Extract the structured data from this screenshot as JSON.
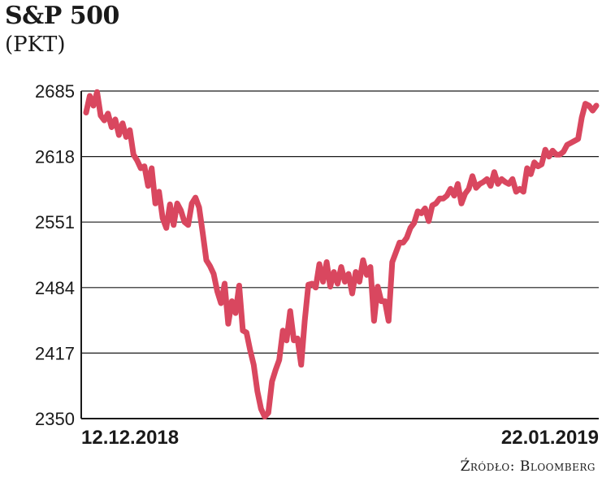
{
  "header": {
    "title": "S&P 500",
    "subtitle": "(PKT)"
  },
  "footer": {
    "source": "Źródło: Bloomberg"
  },
  "chart_data": {
    "type": "line",
    "title": "S&P 500",
    "ylabel": "(PKT)",
    "xlabel": "",
    "ylim": [
      2350,
      2685
    ],
    "yticks": [
      2685,
      2618,
      2551,
      2484,
      2417,
      2350
    ],
    "xtick_labels": [
      "12.12.2018",
      "22.01.2019"
    ],
    "grid": "horizontal",
    "line_color": "#d9475f",
    "series": [
      {
        "values": [
          2663,
          2680,
          2670,
          2684,
          2660,
          2655,
          2662,
          2648,
          2656,
          2640,
          2652,
          2638,
          2645,
          2620,
          2614,
          2606,
          2608,
          2588,
          2606,
          2570,
          2582,
          2555,
          2545,
          2569,
          2548,
          2570,
          2563,
          2551,
          2548,
          2570,
          2576,
          2566,
          2540,
          2512,
          2506,
          2498,
          2480,
          2468,
          2488,
          2447,
          2470,
          2458,
          2486,
          2440,
          2438,
          2420,
          2405,
          2378,
          2360,
          2352,
          2356,
          2388,
          2400,
          2410,
          2440,
          2430,
          2460,
          2430,
          2432,
          2405,
          2450,
          2487,
          2488,
          2484,
          2508,
          2490,
          2510,
          2485,
          2500,
          2488,
          2505,
          2490,
          2498,
          2478,
          2500,
          2490,
          2512,
          2497,
          2505,
          2450,
          2485,
          2470,
          2470,
          2450,
          2510,
          2520,
          2530,
          2530,
          2535,
          2545,
          2550,
          2562,
          2560,
          2565,
          2552,
          2568,
          2570,
          2575,
          2575,
          2578,
          2585,
          2578,
          2590,
          2570,
          2580,
          2585,
          2598,
          2586,
          2590,
          2592,
          2595,
          2588,
          2602,
          2590,
          2595,
          2592,
          2590,
          2595,
          2582,
          2585,
          2582,
          2606,
          2600,
          2612,
          2608,
          2610,
          2625,
          2618,
          2624,
          2620,
          2620,
          2623,
          2630,
          2632,
          2634,
          2636,
          2658,
          2672,
          2670,
          2665,
          2670
        ]
      }
    ]
  }
}
